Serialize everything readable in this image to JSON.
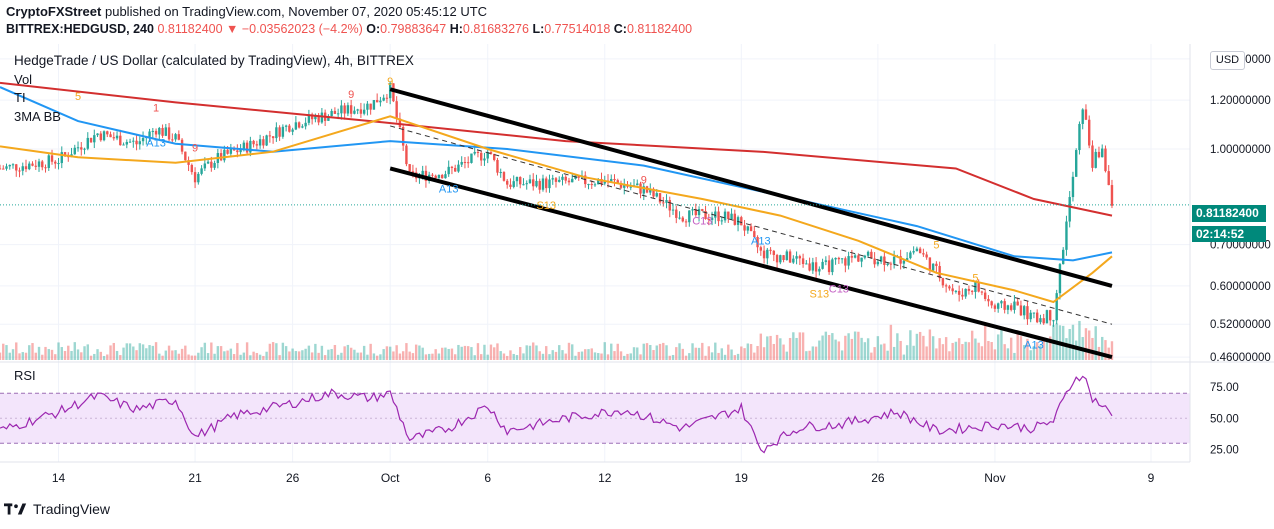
{
  "header": {
    "line1_author": "CryptoFXStreet",
    "line1_rest": "published on TradingView.com, November 07, 2020 05:45:12 UTC",
    "line2_symbol": "BITTREX:HEDGUSD, 240",
    "line2_change": "0.81182400 ▼ −0.03562023 (−4.2%)",
    "o_label": "O:",
    "o_value": "0.79883647",
    "h_label": "H:",
    "h_value": "0.81683276",
    "l_label": "L:",
    "l_value": "0.77514018",
    "c_label": "C:",
    "c_value": "0.81182400"
  },
  "legend": {
    "title": "HedgeTrade / US Dollar (calculated by TradingView), 4h, BITTREX",
    "items": [
      "Vol",
      "TI",
      "3MA BB"
    ]
  },
  "price_axis": {
    "currency_button": "USD",
    "last_price": "0.81182400",
    "countdown": "02:14:52"
  },
  "rsi_pane": {
    "label": "RSI"
  },
  "footer": {
    "brand": "TradingView"
  },
  "colors": {
    "up": "#26a69a",
    "down": "#ef5350",
    "ma200": "#d32f2f",
    "ma100": "#2196f3",
    "ma50": "#f4a81d",
    "rsi": "#9c27b0",
    "rsi_band": "#f3e5fb",
    "channel": "#000000"
  },
  "chart_data": [
    {
      "type": "candlestick",
      "title": "HedgeTrade / US Dollar (calculated by TradingView), 4h, BITTREX",
      "x_ticks": [
        "14",
        "21",
        "26",
        "Oct",
        "6",
        "12",
        "19",
        "26",
        "Nov",
        "9"
      ],
      "y_ticks": [
        "1.40000000",
        "1.20000000",
        "1.00000000",
        "0.70000000",
        "0.60000000",
        "0.52000000",
        "0.46000000"
      ],
      "y_scale": "log",
      "ylim": [
        0.455,
        1.48
      ],
      "x_range": [
        "2020-09-11",
        "2020-11-11"
      ],
      "last_price": 0.811824,
      "price_path": [
        [
          "2020-09-11",
          0.93
        ],
        [
          "2020-09-14",
          0.96
        ],
        [
          "2020-09-16",
          1.06
        ],
        [
          "2020-09-18",
          1.02
        ],
        [
          "2020-09-19",
          1.08
        ],
        [
          "2020-09-20",
          1.04
        ],
        [
          "2020-09-21",
          0.9
        ],
        [
          "2020-09-22",
          0.96
        ],
        [
          "2020-09-24",
          1.02
        ],
        [
          "2020-09-26",
          1.1
        ],
        [
          "2020-09-28",
          1.14
        ],
        [
          "2020-09-30",
          1.18
        ],
        [
          "2020-10-01",
          1.25
        ],
        [
          "2020-10-02",
          0.9
        ],
        [
          "2020-10-04",
          0.92
        ],
        [
          "2020-10-06",
          0.99
        ],
        [
          "2020-10-07",
          0.88
        ],
        [
          "2020-10-09",
          0.88
        ],
        [
          "2020-10-12",
          0.89
        ],
        [
          "2020-10-14",
          0.86
        ],
        [
          "2020-10-16",
          0.78
        ],
        [
          "2020-10-18",
          0.78
        ],
        [
          "2020-10-19",
          0.76
        ],
        [
          "2020-10-20",
          0.68
        ],
        [
          "2020-10-22",
          0.66
        ],
        [
          "2020-10-23",
          0.64
        ],
        [
          "2020-10-25",
          0.67
        ],
        [
          "2020-10-27",
          0.66
        ],
        [
          "2020-10-28",
          0.69
        ],
        [
          "2020-10-30",
          0.58
        ],
        [
          "2020-10-31",
          0.6
        ],
        [
          "2020-11-01",
          0.55
        ],
        [
          "2020-11-02",
          0.56
        ],
        [
          "2020-11-03",
          0.53
        ],
        [
          "2020-11-04",
          0.54
        ],
        [
          "2020-11-05",
          0.9
        ],
        [
          "2020-11-05T12:00",
          1.18
        ],
        [
          "2020-11-06",
          0.95
        ],
        [
          "2020-11-06T12:00",
          1.0
        ],
        [
          "2020-11-07",
          0.81
        ]
      ],
      "series": [
        {
          "name": "MA 200",
          "values": [
            [
              "2020-09-11",
              1.28
            ],
            [
              "2020-09-20",
              1.19
            ],
            [
              "2020-09-30",
              1.11
            ],
            [
              "2020-10-10",
              1.03
            ],
            [
              "2020-10-20",
              0.99
            ],
            [
              "2020-10-30",
              0.93
            ],
            [
              "2020-11-03",
              0.83
            ],
            [
              "2020-11-07",
              0.78
            ]
          ]
        },
        {
          "name": "MA 100",
          "values": [
            [
              "2020-09-11",
              1.26
            ],
            [
              "2020-09-15",
              1.11
            ],
            [
              "2020-09-20",
              1.02
            ],
            [
              "2020-09-25",
              0.99
            ],
            [
              "2020-10-01",
              1.03
            ],
            [
              "2020-10-07",
              1.0
            ],
            [
              "2020-10-14",
              0.94
            ],
            [
              "2020-10-21",
              0.84
            ],
            [
              "2020-10-28",
              0.75
            ],
            [
              "2020-11-02",
              0.67
            ],
            [
              "2020-11-05",
              0.66
            ],
            [
              "2020-11-07",
              0.68
            ]
          ]
        },
        {
          "name": "MA 50",
          "values": [
            [
              "2020-09-11",
              1.01
            ],
            [
              "2020-09-15",
              0.97
            ],
            [
              "2020-09-20",
              0.95
            ],
            [
              "2020-09-25",
              0.99
            ],
            [
              "2020-10-01",
              1.13
            ],
            [
              "2020-10-06",
              1.0
            ],
            [
              "2020-10-11",
              0.9
            ],
            [
              "2020-10-17",
              0.83
            ],
            [
              "2020-10-21",
              0.78
            ],
            [
              "2020-10-25",
              0.71
            ],
            [
              "2020-10-29",
              0.63
            ],
            [
              "2020-11-02",
              0.59
            ],
            [
              "2020-11-04",
              0.565
            ],
            [
              "2020-11-06",
              0.63
            ],
            [
              "2020-11-07",
              0.67
            ]
          ]
        }
      ],
      "channel": {
        "upper": [
          [
            "2020-10-01",
            1.25
          ],
          [
            "2020-11-07",
            0.6
          ]
        ],
        "lower": [
          [
            "2020-10-01",
            0.93
          ],
          [
            "2020-11-07",
            0.46
          ]
        ],
        "middle_dashed": [
          [
            "2020-10-01",
            1.09
          ],
          [
            "2020-11-07",
            0.52
          ]
        ]
      },
      "annotations": [
        {
          "text": "5",
          "date": "2020-09-15",
          "price": 1.2,
          "color": "#f4a81d"
        },
        {
          "text": "1",
          "date": "2020-09-19",
          "price": 1.15,
          "color": "#ef5350"
        },
        {
          "text": "A13",
          "date": "2020-09-19",
          "price": 1.01,
          "color": "#2196f3"
        },
        {
          "text": "9",
          "date": "2020-09-21",
          "price": 0.99,
          "color": "#ef5350"
        },
        {
          "text": "9",
          "date": "2020-09-29",
          "price": 1.21,
          "color": "#ef5350"
        },
        {
          "text": "9",
          "date": "2020-10-01",
          "price": 1.27,
          "color": "#f4a81d"
        },
        {
          "text": "A13",
          "date": "2020-10-04",
          "price": 0.85,
          "color": "#2196f3"
        },
        {
          "text": "S13",
          "date": "2020-10-09",
          "price": 0.8,
          "color": "#f4a81d"
        },
        {
          "text": "9",
          "date": "2020-10-14",
          "price": 0.88,
          "color": "#ef5350"
        },
        {
          "text": "C13",
          "date": "2020-10-17",
          "price": 0.755,
          "color": "#c45fc4"
        },
        {
          "text": "A13",
          "date": "2020-10-20",
          "price": 0.7,
          "color": "#2196f3"
        },
        {
          "text": "S13",
          "date": "2020-10-23",
          "price": 0.575,
          "color": "#f4a81d"
        },
        {
          "text": "C13",
          "date": "2020-10-24",
          "price": 0.585,
          "color": "#c45fc4"
        },
        {
          "text": "5",
          "date": "2020-10-29",
          "price": 0.69,
          "color": "#f4a81d"
        },
        {
          "text": "5",
          "date": "2020-10-31",
          "price": 0.61,
          "color": "#f4a81d"
        },
        {
          "text": "A13",
          "date": "2020-11-03",
          "price": 0.475,
          "color": "#2196f3"
        }
      ]
    },
    {
      "type": "line",
      "title": "RSI",
      "ylim": [
        15,
        95
      ],
      "y_ticks": [
        "75.00",
        "50.00",
        "25.00"
      ],
      "bands": [
        30,
        70
      ],
      "series": [
        {
          "name": "RSI",
          "values": [
            [
              "2020-09-11",
              40
            ],
            [
              "2020-09-14",
              55
            ],
            [
              "2020-09-16",
              68
            ],
            [
              "2020-09-18",
              57
            ],
            [
              "2020-09-20",
              65
            ],
            [
              "2020-09-21",
              35
            ],
            [
              "2020-09-23",
              52
            ],
            [
              "2020-09-26",
              62
            ],
            [
              "2020-09-28",
              70
            ],
            [
              "2020-09-30",
              66
            ],
            [
              "2020-10-01",
              70
            ],
            [
              "2020-10-02",
              33
            ],
            [
              "2020-10-04",
              42
            ],
            [
              "2020-10-06",
              60
            ],
            [
              "2020-10-07",
              40
            ],
            [
              "2020-10-10",
              50
            ],
            [
              "2020-10-13",
              57
            ],
            [
              "2020-10-16",
              42
            ],
            [
              "2020-10-19",
              58
            ],
            [
              "2020-10-20",
              25
            ],
            [
              "2020-10-22",
              43
            ],
            [
              "2020-10-24",
              45
            ],
            [
              "2020-10-27",
              55
            ],
            [
              "2020-10-29",
              40
            ],
            [
              "2020-10-31",
              43
            ],
            [
              "2020-11-01",
              45
            ],
            [
              "2020-11-03",
              42
            ],
            [
              "2020-11-04",
              48
            ],
            [
              "2020-11-05",
              80
            ],
            [
              "2020-11-05T12:00",
              86
            ],
            [
              "2020-11-06",
              66
            ],
            [
              "2020-11-06T12:00",
              60
            ],
            [
              "2020-11-07",
              52
            ]
          ]
        }
      ]
    }
  ]
}
